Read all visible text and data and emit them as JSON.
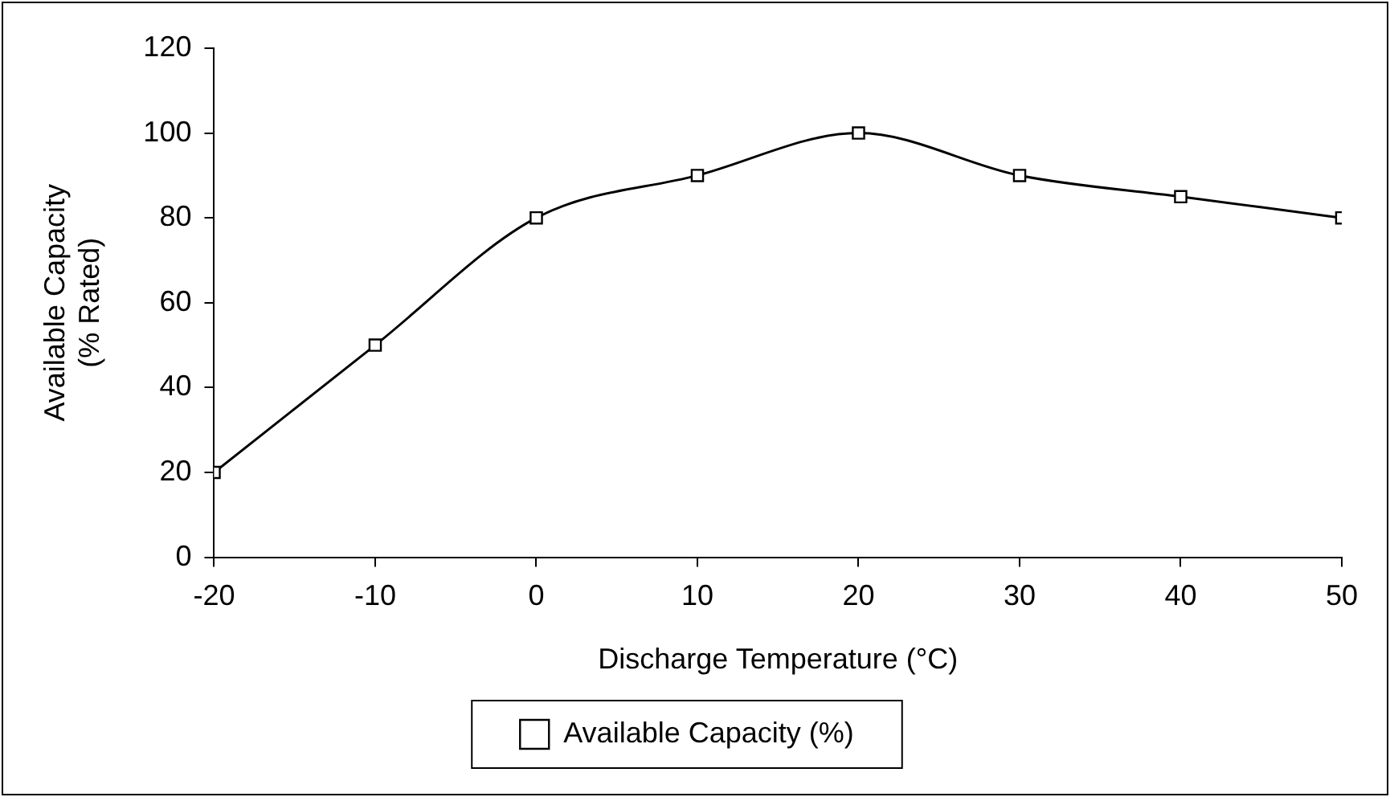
{
  "chart_data": {
    "type": "line",
    "xlabel": "Discharge Temperature (°C)",
    "ylabel": "Available Capacity\n(% Rated)",
    "x": [
      -20,
      -10,
      0,
      10,
      20,
      30,
      40,
      50
    ],
    "series": [
      {
        "name": "Available Capacity (%)",
        "color": "#000000",
        "values": [
          20,
          50,
          80,
          90,
          100,
          90,
          85,
          80
        ]
      }
    ],
    "xlim": [
      -20,
      50
    ],
    "xticks": [
      -20,
      -10,
      0,
      10,
      20,
      30,
      40,
      50
    ],
    "ylim": [
      0,
      120
    ],
    "yticks": [
      0,
      20,
      40,
      60,
      80,
      100,
      120
    ],
    "grid": false,
    "legend": "bottom",
    "marker": "square",
    "line_style": "solid"
  }
}
